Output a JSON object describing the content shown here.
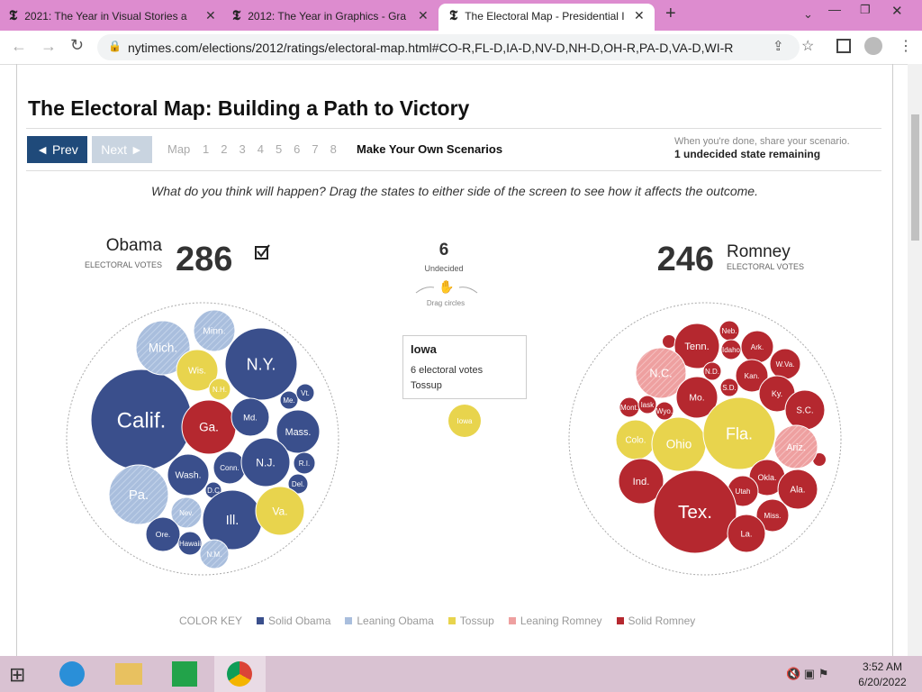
{
  "browser": {
    "tabs": [
      "2021: The Year in Visual Stories a",
      "2012: The Year in Graphics - Gra",
      "The Electoral Map - Presidential I"
    ],
    "address": "nytimes.com/elections/2012/ratings/electoral-map.html#CO-R,FL-D,IA-D,NV-D,NH-D,OH-R,PA-D,VA-D,WI-R"
  },
  "page": {
    "title": "The Electoral Map: Building a Path to Victory",
    "nav": {
      "prev": "◄ Prev",
      "next": "Next ►",
      "map": "Map",
      "steps": [
        "1",
        "2",
        "3",
        "4",
        "5",
        "6",
        "7",
        "8"
      ],
      "scenarios": "Make Your Own Scenarios"
    },
    "share_note": "When you're done, share your scenario.",
    "remaining": "1 undecided state remaining",
    "instruction": "What do you think will happen? Drag the states to either side of the screen to see how it affects the outcome.",
    "obama": {
      "name": "Obama",
      "sublabel": "ELECTORAL VOTES",
      "votes": 286
    },
    "undecided": {
      "count": 6,
      "label": "Undecided",
      "hint": "Drag circles"
    },
    "romney": {
      "name": "Romney",
      "sublabel": "ELECTORAL VOTES",
      "votes": 246
    },
    "tooltip": {
      "state": "Iowa",
      "votes": "6 electoral votes",
      "status": "Tossup"
    },
    "loose_bubble": "Iowa",
    "obama_bubbles": [
      "Calif.",
      "N.Y.",
      "Mich.",
      "Minn.",
      "Wis.",
      "N.H.",
      "Ga.",
      "Md.",
      "Me.",
      "Vt.",
      "Mass.",
      "Pa.",
      "Wash.",
      "Conn.",
      "N.J.",
      "R.I.",
      "Del.",
      "D.C",
      "Ill.",
      "Va.",
      "Nev.",
      "Ore.",
      "Hawaii",
      "N.M."
    ],
    "romney_bubbles": [
      "Tenn.",
      "Neb.",
      "Idaho",
      "Ark.",
      "N.C.",
      "N.D.",
      "W.Va.",
      "Kan.",
      "S.D.",
      "Mo.",
      "Ky.",
      "S.C.",
      "Mont.",
      "lask",
      "Wyo.",
      "Colo.",
      "Ohio",
      "Fla.",
      "Ariz.",
      "Ind.",
      "Okla.",
      "Ala.",
      "Utah",
      "Tex.",
      "Miss.",
      "La."
    ],
    "color_key": {
      "title": "COLOR KEY",
      "items": [
        "Solid Obama",
        "Leaning Obama",
        "Tossup",
        "Leaning Romney",
        "Solid Romney"
      ]
    }
  },
  "taskbar": {
    "time": "3:52 AM",
    "date": "6/20/2022"
  }
}
